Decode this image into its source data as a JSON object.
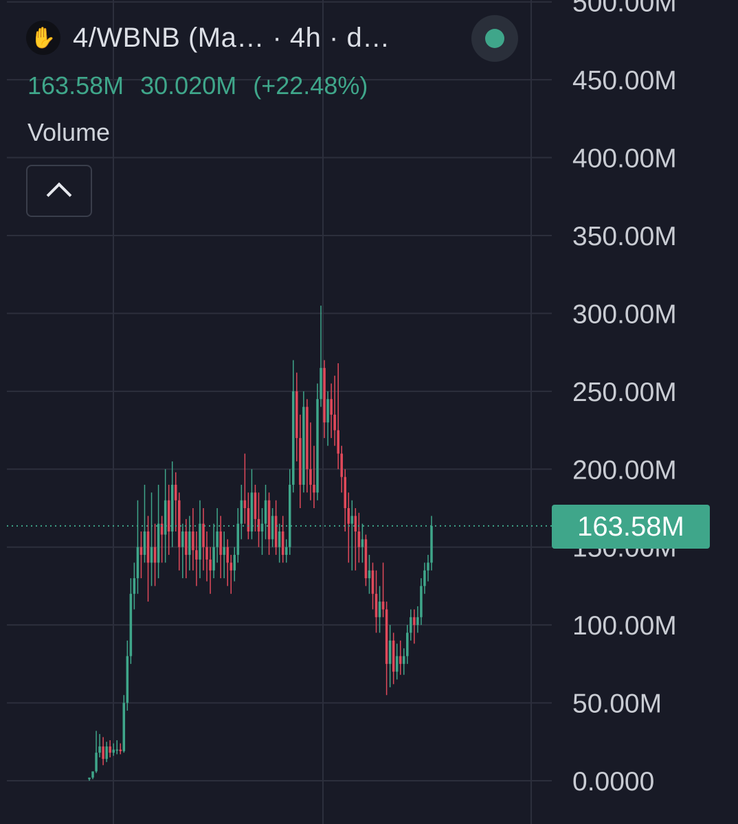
{
  "header": {
    "logo_icon": "hand-logo-icon",
    "pair_title": "4/WBNB (Ma… · 4h · d…",
    "status": "live-status-dot",
    "values": [
      "163.58M",
      "30.020M",
      "(+22.48%)"
    ],
    "indicator": "Volume",
    "collapse_icon": "chevron-up-icon"
  },
  "price_axis": {
    "ticks": [
      "500.00M",
      "450.00M",
      "400.00M",
      "350.00M",
      "300.00M",
      "250.00M",
      "200.00M",
      "150.00M",
      "100.00M",
      "50.00M",
      "0.0000"
    ]
  },
  "last_price": {
    "label": "163.58M",
    "value": 163.58
  },
  "colors": {
    "background": "#181a26",
    "grid": "#2c2f3c",
    "up": "#3fa68a",
    "down": "#e0495a",
    "axis_text": "#c9ccd3"
  },
  "chart_data": {
    "type": "candlestick",
    "title": "4/WBNB (Ma… · 4h · d…",
    "unit": "M",
    "ylim": [
      0,
      510
    ],
    "grid": true,
    "candles": [
      [
        1,
        2,
        0,
        2
      ],
      [
        2,
        6,
        1,
        6
      ],
      [
        6,
        32,
        5,
        18
      ],
      [
        18,
        30,
        15,
        22
      ],
      [
        22,
        28,
        10,
        14
      ],
      [
        14,
        25,
        12,
        22
      ],
      [
        22,
        26,
        15,
        18
      ],
      [
        18,
        24,
        16,
        20
      ],
      [
        20,
        26,
        17,
        20
      ],
      [
        20,
        24,
        17,
        19
      ],
      [
        19,
        55,
        18,
        50
      ],
      [
        50,
        90,
        45,
        80
      ],
      [
        80,
        130,
        75,
        120
      ],
      [
        120,
        140,
        110,
        130
      ],
      [
        130,
        180,
        120,
        150
      ],
      [
        150,
        160,
        130,
        145
      ],
      [
        145,
        190,
        140,
        160
      ],
      [
        160,
        170,
        115,
        140
      ],
      [
        140,
        185,
        125,
        150
      ],
      [
        150,
        165,
        125,
        140
      ],
      [
        140,
        190,
        130,
        165
      ],
      [
        165,
        170,
        140,
        158
      ],
      [
        158,
        200,
        140,
        180
      ],
      [
        180,
        190,
        145,
        160
      ],
      [
        160,
        205,
        150,
        190
      ],
      [
        190,
        198,
        160,
        180
      ],
      [
        180,
        185,
        135,
        150
      ],
      [
        150,
        165,
        130,
        160
      ],
      [
        160,
        168,
        130,
        145
      ],
      [
        145,
        170,
        135,
        160
      ],
      [
        160,
        175,
        135,
        148
      ],
      [
        148,
        160,
        125,
        142
      ],
      [
        142,
        180,
        130,
        165
      ],
      [
        165,
        175,
        135,
        150
      ],
      [
        150,
        160,
        128,
        142
      ],
      [
        142,
        150,
        120,
        135
      ],
      [
        135,
        165,
        130,
        150
      ],
      [
        150,
        175,
        140,
        160
      ],
      [
        160,
        170,
        130,
        145
      ],
      [
        145,
        160,
        130,
        150
      ],
      [
        150,
        155,
        125,
        140
      ],
      [
        140,
        145,
        120,
        135
      ],
      [
        135,
        150,
        128,
        145
      ],
      [
        145,
        175,
        140,
        165
      ],
      [
        165,
        190,
        155,
        180
      ],
      [
        180,
        210,
        165,
        175
      ],
      [
        175,
        185,
        155,
        160
      ],
      [
        160,
        200,
        155,
        185
      ],
      [
        185,
        190,
        160,
        168
      ],
      [
        168,
        185,
        150,
        160
      ],
      [
        160,
        175,
        145,
        165
      ],
      [
        165,
        190,
        155,
        180
      ],
      [
        180,
        185,
        145,
        155
      ],
      [
        155,
        175,
        150,
        170
      ],
      [
        170,
        180,
        145,
        150
      ],
      [
        150,
        165,
        140,
        160
      ],
      [
        160,
        170,
        140,
        145
      ],
      [
        145,
        155,
        140,
        150
      ],
      [
        150,
        200,
        145,
        190
      ],
      [
        190,
        270,
        185,
        250
      ],
      [
        250,
        262,
        205,
        220
      ],
      [
        220,
        235,
        175,
        190
      ],
      [
        190,
        250,
        185,
        240
      ],
      [
        240,
        245,
        185,
        200
      ],
      [
        200,
        230,
        180,
        190
      ],
      [
        190,
        215,
        175,
        185
      ],
      [
        185,
        255,
        180,
        245
      ],
      [
        245,
        305,
        240,
        265
      ],
      [
        265,
        270,
        220,
        230
      ],
      [
        230,
        250,
        215,
        245
      ],
      [
        245,
        255,
        220,
        235
      ],
      [
        235,
        260,
        215,
        225
      ],
      [
        225,
        268,
        200,
        210
      ],
      [
        210,
        215,
        185,
        195
      ],
      [
        195,
        200,
        160,
        175
      ],
      [
        175,
        185,
        140,
        165
      ],
      [
        165,
        180,
        135,
        170
      ],
      [
        170,
        175,
        135,
        160
      ],
      [
        160,
        172,
        140,
        150
      ],
      [
        150,
        165,
        140,
        155
      ],
      [
        155,
        158,
        125,
        130
      ],
      [
        130,
        145,
        120,
        135
      ],
      [
        135,
        140,
        110,
        120
      ],
      [
        120,
        135,
        95,
        105
      ],
      [
        105,
        125,
        95,
        115
      ],
      [
        115,
        140,
        105,
        110
      ],
      [
        110,
        115,
        55,
        75
      ],
      [
        75,
        100,
        60,
        90
      ],
      [
        90,
        95,
        62,
        70
      ],
      [
        70,
        88,
        65,
        80
      ],
      [
        80,
        90,
        68,
        75
      ],
      [
        75,
        85,
        68,
        80
      ],
      [
        80,
        100,
        75,
        95
      ],
      [
        95,
        110,
        90,
        105
      ],
      [
        105,
        110,
        88,
        100
      ],
      [
        100,
        112,
        95,
        105
      ],
      [
        105,
        130,
        100,
        125
      ],
      [
        125,
        140,
        120,
        135
      ],
      [
        135,
        145,
        128,
        140
      ],
      [
        140,
        170,
        135,
        163.58
      ]
    ]
  }
}
